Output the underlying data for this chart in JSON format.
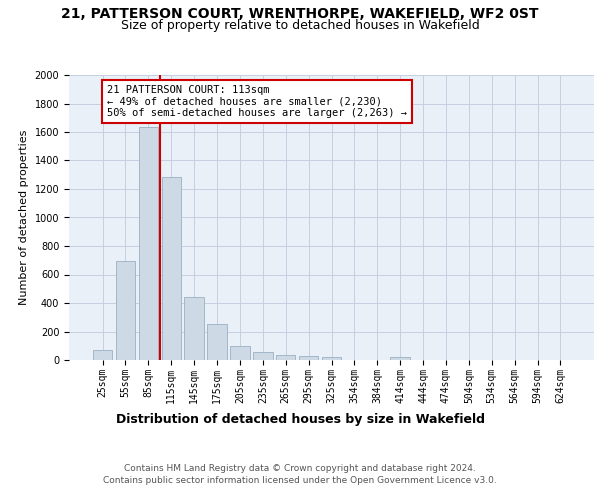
{
  "title": "21, PATTERSON COURT, WRENTHORPE, WAKEFIELD, WF2 0ST",
  "subtitle": "Size of property relative to detached houses in Wakefield",
  "xlabel": "Distribution of detached houses by size in Wakefield",
  "ylabel": "Number of detached properties",
  "bar_color": "#cdd9e5",
  "bar_edge_color": "#9ab0c4",
  "grid_color": "#c5cfe0",
  "background_color": "#eaf0f8",
  "categories": [
    "25sqm",
    "55sqm",
    "85sqm",
    "115sqm",
    "145sqm",
    "175sqm",
    "205sqm",
    "235sqm",
    "265sqm",
    "295sqm",
    "325sqm",
    "354sqm",
    "384sqm",
    "414sqm",
    "444sqm",
    "474sqm",
    "504sqm",
    "534sqm",
    "564sqm",
    "594sqm",
    "624sqm"
  ],
  "values": [
    70,
    695,
    1635,
    1285,
    445,
    255,
    100,
    57,
    38,
    30,
    20,
    0,
    0,
    23,
    0,
    0,
    0,
    0,
    0,
    0,
    0
  ],
  "annotation_line1": "21 PATTERSON COURT: 113sqm",
  "annotation_line2": "← 49% of detached houses are smaller (2,230)",
  "annotation_line3": "50% of semi-detached houses are larger (2,263) →",
  "annotation_box_color": "#ffffff",
  "annotation_box_edge_color": "#cc0000",
  "vline_color": "#cc0000",
  "ylim": [
    0,
    2000
  ],
  "yticks": [
    0,
    200,
    400,
    600,
    800,
    1000,
    1200,
    1400,
    1600,
    1800,
    2000
  ],
  "footer1": "Contains HM Land Registry data © Crown copyright and database right 2024.",
  "footer2": "Contains public sector information licensed under the Open Government Licence v3.0.",
  "title_fontsize": 10,
  "subtitle_fontsize": 9,
  "xlabel_fontsize": 9,
  "ylabel_fontsize": 8,
  "tick_fontsize": 7,
  "annotation_fontsize": 7.5,
  "footer_fontsize": 6.5
}
